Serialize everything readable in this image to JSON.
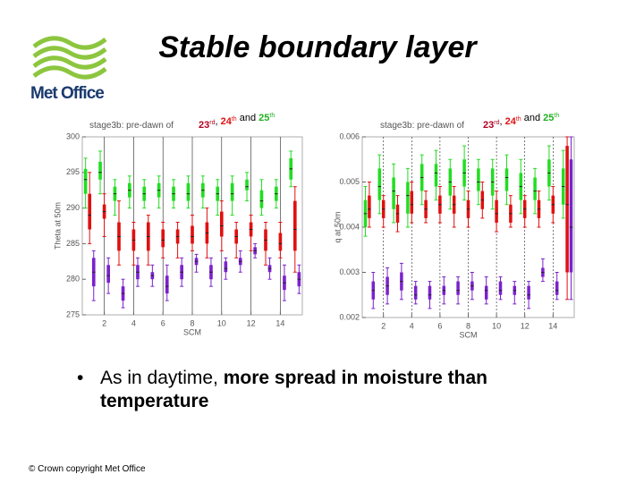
{
  "slide": {
    "title": "Stable boundary layer",
    "logo": "Met Office",
    "bullet": {
      "normal": "As in daytime, ",
      "bold": "more spread in moisture than temperature"
    },
    "footer": "© Crown copyright   Met Office"
  },
  "chart_data": [
    {
      "type": "box",
      "title": "stage3b: pre-dawn of",
      "annotation": [
        {
          "text": "23",
          "sup": "rd",
          "color": "#b00020"
        },
        {
          "text": ", "
        },
        {
          "text": "24",
          "sup": "th",
          "color": "#e01010"
        },
        {
          "text": " and "
        },
        {
          "text": "25",
          "sup": "th",
          "color": "#20b020"
        }
      ],
      "x_label": "SCM",
      "y_label": "Theta at 50m",
      "x": [
        1,
        2,
        3,
        4,
        5,
        6,
        7,
        8,
        9,
        10,
        11,
        12,
        13,
        14,
        15
      ],
      "xlim": [
        0.5,
        15.5
      ],
      "xticks": [
        2,
        4,
        6,
        8,
        10,
        12,
        14
      ],
      "ylim": [
        275,
        300
      ],
      "yticks": [
        275,
        280,
        285,
        290,
        295,
        300
      ],
      "grid": true,
      "series": [
        {
          "name": "25th",
          "color": "#22dd22",
          "values": [
            [
              290,
              292,
              294,
              295.5,
              297
            ],
            [
              292,
              294,
              295,
              296.5,
              298
            ],
            [
              289,
              291,
              292,
              293,
              294
            ],
            [
              290,
              291.5,
              292.5,
              293.5,
              294.5
            ],
            [
              290,
              291,
              292,
              293,
              294
            ],
            [
              290,
              291.5,
              292.5,
              293.5,
              294.5
            ],
            [
              290,
              291,
              292,
              293,
              294
            ],
            [
              290,
              291,
              292,
              293.5,
              294.5
            ],
            [
              290,
              291.5,
              292.5,
              293.5,
              294.5
            ],
            [
              289,
              291,
              292,
              293,
              294
            ],
            [
              289,
              291,
              292,
              293.5,
              294.5
            ],
            [
              291,
              292.5,
              293,
              294,
              295
            ],
            [
              289,
              290,
              291,
              292.5,
              294
            ],
            [
              290,
              291,
              292,
              293,
              294
            ],
            [
              293,
              294,
              295.5,
              297,
              298
            ]
          ]
        },
        {
          "name": "24th",
          "color": "#e01010",
          "values": [
            [
              285,
              287,
              289,
              292,
              295
            ],
            [
              286,
              288.5,
              289.5,
              290.5,
              292
            ],
            [
              282,
              284,
              286,
              288,
              291
            ],
            [
              282,
              284,
              285.5,
              287,
              288
            ],
            [
              282,
              284,
              286,
              288,
              289
            ],
            [
              283,
              284.5,
              285.5,
              287,
              288
            ],
            [
              283,
              285,
              286,
              287,
              288
            ],
            [
              284,
              285,
              286,
              287.5,
              289
            ],
            [
              283,
              285,
              286.5,
              288,
              290
            ],
            [
              284,
              286,
              287.5,
              289.5,
              291
            ],
            [
              283,
              285,
              286,
              287,
              288
            ],
            [
              284,
              286,
              287,
              288,
              289
            ],
            [
              282,
              284,
              285.5,
              287,
              288
            ],
            [
              283,
              284,
              285,
              286.5,
              288
            ],
            [
              281,
              284,
              287,
              291,
              293
            ]
          ]
        },
        {
          "name": "23rd",
          "color": "#7a22cc",
          "values": [
            [
              277,
              279,
              281,
              283,
              284
            ],
            [
              278,
              279.5,
              280.5,
              282,
              283
            ],
            [
              276,
              277,
              278,
              279,
              280
            ],
            [
              279,
              280,
              281,
              282,
              283
            ],
            [
              279,
              280,
              280.5,
              281,
              282
            ],
            [
              277,
              278,
              279,
              280.5,
              282
            ],
            [
              279,
              280,
              281,
              282,
              283
            ],
            [
              281,
              282,
              282.5,
              283,
              283.5
            ],
            [
              279,
              280,
              281,
              282,
              283
            ],
            [
              280,
              281,
              281.5,
              282.5,
              283
            ],
            [
              281,
              282,
              282.5,
              283,
              284
            ],
            [
              283,
              283.5,
              284,
              284.5,
              285
            ],
            [
              280,
              281,
              281.5,
              282,
              283
            ],
            [
              277,
              278.5,
              279.5,
              280.5,
              282
            ],
            [
              278,
              279,
              280,
              281,
              282
            ]
          ]
        }
      ]
    },
    {
      "type": "box",
      "title": "stage3b: pre-dawn of",
      "annotation": [
        {
          "text": "23",
          "sup": "rd",
          "color": "#b00020"
        },
        {
          "text": ", "
        },
        {
          "text": "24",
          "sup": "th",
          "color": "#e01010"
        },
        {
          "text": " and "
        },
        {
          "text": "25",
          "sup": "th",
          "color": "#20b020"
        }
      ],
      "x_label": "SCM",
      "y_label": "q at 50m",
      "x": [
        1,
        2,
        3,
        4,
        5,
        6,
        7,
        8,
        9,
        10,
        11,
        12,
        13,
        14,
        15
      ],
      "xlim": [
        0.5,
        15.5
      ],
      "xticks": [
        2,
        4,
        6,
        8,
        10,
        12,
        14
      ],
      "ylim": [
        0.002,
        0.006
      ],
      "yticks": [
        0.002,
        0.003,
        0.004,
        0.005,
        0.006
      ],
      "grid": true,
      "series": [
        {
          "name": "25th",
          "color": "#22dd22",
          "values": [
            [
              0.0038,
              0.004,
              0.0043,
              0.0046,
              0.0049
            ],
            [
              0.0043,
              0.0046,
              0.0049,
              0.0053,
              0.0056
            ],
            [
              0.0041,
              0.0044,
              0.0048,
              0.0051,
              0.0054
            ],
            [
              0.004,
              0.0043,
              0.0047,
              0.005,
              0.0053
            ],
            [
              0.0045,
              0.0048,
              0.0051,
              0.0054,
              0.0056
            ],
            [
              0.0046,
              0.0049,
              0.0052,
              0.0054,
              0.0057
            ],
            [
              0.0044,
              0.0047,
              0.005,
              0.0053,
              0.0055
            ],
            [
              0.0046,
              0.0049,
              0.0052,
              0.0055,
              0.0058
            ],
            [
              0.0045,
              0.0048,
              0.005,
              0.0053,
              0.0055
            ],
            [
              0.0044,
              0.0047,
              0.005,
              0.0053,
              0.0055
            ],
            [
              0.0045,
              0.0048,
              0.0051,
              0.0053,
              0.0056
            ],
            [
              0.0043,
              0.0046,
              0.0049,
              0.0052,
              0.0055
            ],
            [
              0.0043,
              0.0046,
              0.0048,
              0.0051,
              0.0053
            ],
            [
              0.0046,
              0.0049,
              0.0052,
              0.0055,
              0.0058
            ],
            [
              0.0042,
              0.0045,
              0.0049,
              0.0053,
              0.0057
            ]
          ]
        },
        {
          "name": "24th",
          "color": "#e01010",
          "values": [
            [
              0.004,
              0.0042,
              0.0044,
              0.0047,
              0.005
            ],
            [
              0.004,
              0.0042,
              0.0044,
              0.0046,
              0.0047
            ],
            [
              0.0039,
              0.0041,
              0.0043,
              0.0045,
              0.0047
            ],
            [
              0.0041,
              0.0043,
              0.0045,
              0.0048,
              0.005
            ],
            [
              0.0041,
              0.0042,
              0.0044,
              0.0046,
              0.0048
            ],
            [
              0.0041,
              0.0043,
              0.0045,
              0.0047,
              0.0049
            ],
            [
              0.004,
              0.0043,
              0.0045,
              0.0047,
              0.0049
            ],
            [
              0.004,
              0.0042,
              0.0044,
              0.0046,
              0.0048
            ],
            [
              0.0042,
              0.0044,
              0.0046,
              0.0048,
              0.005
            ],
            [
              0.0039,
              0.0041,
              0.0043,
              0.0046,
              0.0048
            ],
            [
              0.004,
              0.0041,
              0.0043,
              0.0045,
              0.0047
            ],
            [
              0.004,
              0.0042,
              0.0044,
              0.0046,
              0.0047
            ],
            [
              0.004,
              0.0042,
              0.0044,
              0.0046,
              0.0048
            ],
            [
              0.0041,
              0.0043,
              0.0045,
              0.0047,
              0.0049
            ],
            [
              0.0024,
              0.003,
              0.0045,
              0.0058,
              0.006
            ]
          ]
        },
        {
          "name": "23rd",
          "color": "#7a22cc",
          "values": [
            [
              0.0022,
              0.0024,
              0.0026,
              0.0028,
              0.003
            ],
            [
              0.0023,
              0.0025,
              0.0027,
              0.0029,
              0.0031
            ],
            [
              0.0024,
              0.0026,
              0.0028,
              0.003,
              0.0032
            ],
            [
              0.0023,
              0.0024,
              0.0025,
              0.0027,
              0.0028
            ],
            [
              0.0022,
              0.0024,
              0.0025,
              0.0027,
              0.0028
            ],
            [
              0.0023,
              0.0025,
              0.0026,
              0.0027,
              0.0029
            ],
            [
              0.0023,
              0.0025,
              0.0026,
              0.0028,
              0.0029
            ],
            [
              0.0024,
              0.0026,
              0.0027,
              0.0028,
              0.003
            ],
            [
              0.0023,
              0.0024,
              0.0026,
              0.0027,
              0.0029
            ],
            [
              0.0024,
              0.0025,
              0.0026,
              0.0028,
              0.0029
            ],
            [
              0.0023,
              0.0025,
              0.0026,
              0.0027,
              0.0028
            ],
            [
              0.0022,
              0.0024,
              0.0025,
              0.0027,
              0.0028
            ],
            [
              0.0028,
              0.0029,
              0.003,
              0.0031,
              0.0033
            ],
            [
              0.0024,
              0.0025,
              0.0026,
              0.0028,
              0.003
            ],
            [
              0.0024,
              0.003,
              0.004,
              0.0055,
              0.006
            ]
          ]
        }
      ]
    }
  ]
}
